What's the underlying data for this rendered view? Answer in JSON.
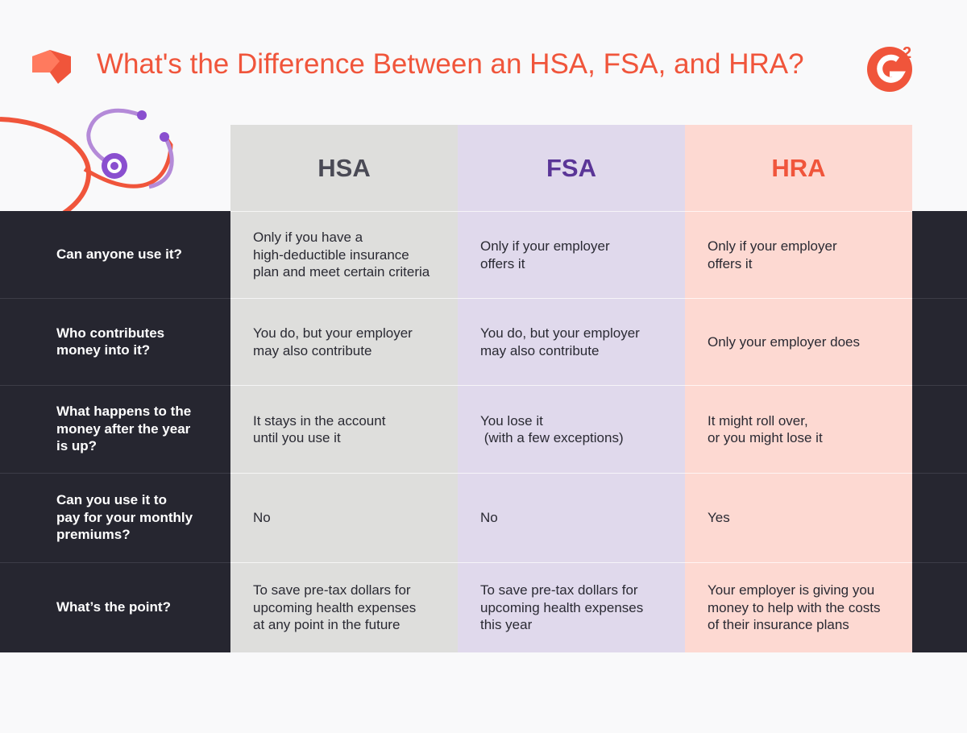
{
  "header": {
    "title": "What's the Difference Between an HSA, FSA, and HRA?",
    "logo_superscript": "2"
  },
  "table": {
    "columns": [
      "HSA",
      "FSA",
      "HRA"
    ],
    "rows": [
      {
        "question": [
          "Can anyone use it?"
        ],
        "cells": [
          [
            "Only if you have a",
            "high-deductible insurance",
            "plan and meet certain criteria"
          ],
          [
            "Only if your employer",
            "offers it"
          ],
          [
            "Only if your employer",
            "offers it"
          ]
        ]
      },
      {
        "question": [
          "Who contributes",
          "money into it?"
        ],
        "cells": [
          [
            "You do, but your employer",
            "may also contribute"
          ],
          [
            "You do, but your employer",
            "may also contribute"
          ],
          [
            "Only your employer does"
          ]
        ]
      },
      {
        "question": [
          "What happens to the",
          "money after the year",
          "is up?"
        ],
        "cells": [
          [
            "It stays in the account",
            "until you use it"
          ],
          [
            "You lose it",
            " (with a few exceptions)"
          ],
          [
            "It might roll over,",
            "or you might lose it"
          ]
        ]
      },
      {
        "question": [
          "Can you use it to",
          "pay for your monthly",
          "premiums?"
        ],
        "cells": [
          [
            "No"
          ],
          [
            "No"
          ],
          [
            "Yes"
          ]
        ]
      },
      {
        "question": [
          "What’s the point?"
        ],
        "cells": [
          [
            "To save pre-tax dollars for",
            "upcoming health expenses",
            "at any point in the future"
          ],
          [
            "To save pre-tax dollars for",
            "upcoming health expenses",
            "this year"
          ],
          [
            "Your employer is giving you",
            "money to help with the costs",
            "of their insurance plans"
          ]
        ]
      }
    ]
  }
}
